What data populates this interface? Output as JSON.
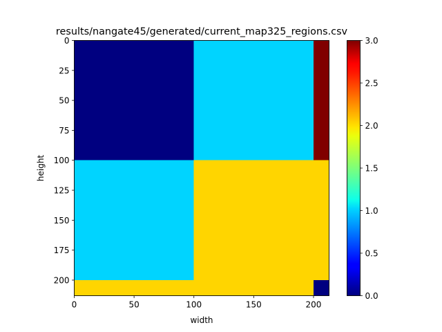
{
  "chart_data": {
    "type": "heatmap",
    "title": "results/nangate45/generated/current_map325_regions.csv",
    "xlabel": "width",
    "ylabel": "height",
    "xlim": [
      0,
      213
    ],
    "ylim": [
      213,
      0
    ],
    "x_ticks": [
      0,
      50,
      100,
      150,
      200
    ],
    "y_ticks": [
      0,
      25,
      50,
      75,
      100,
      125,
      150,
      175,
      200
    ],
    "colormap": "jet",
    "colorbar": {
      "range": [
        0.0,
        3.0
      ],
      "ticks": [
        "0.0",
        "0.5",
        "1.0",
        "1.5",
        "2.0",
        "2.5",
        "3.0"
      ]
    },
    "regions": [
      {
        "x0": 0,
        "x1": 100,
        "y0": 0,
        "y1": 100,
        "value": 0
      },
      {
        "x0": 100,
        "x1": 200,
        "y0": 0,
        "y1": 100,
        "value": 1
      },
      {
        "x0": 200,
        "x1": 213,
        "y0": 0,
        "y1": 100,
        "value": 3
      },
      {
        "x0": 0,
        "x1": 100,
        "y0": 100,
        "y1": 200,
        "value": 1
      },
      {
        "x0": 100,
        "x1": 213,
        "y0": 100,
        "y1": 200,
        "value": 2
      },
      {
        "x0": 0,
        "x1": 200,
        "y0": 200,
        "y1": 213,
        "value": 2
      },
      {
        "x0": 200,
        "x1": 213,
        "y0": 200,
        "y1": 213,
        "value": 0
      }
    ]
  }
}
